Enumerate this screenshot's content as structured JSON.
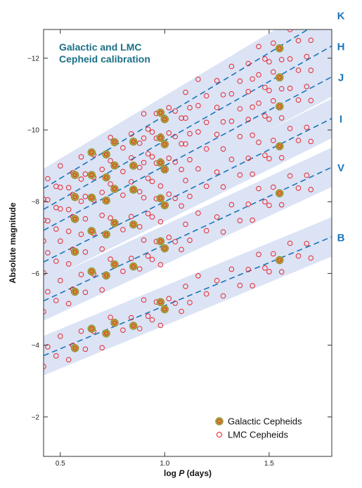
{
  "chart_data": {
    "type": "scatter",
    "title_lines": [
      "Galactic and LMC",
      "Cepheid calibration"
    ],
    "xlabel_prefix": "log ",
    "xlabel_var": "P",
    "xlabel_suffix": " (days)",
    "ylabel": "Absolute magnitude",
    "xlim": [
      0.42,
      1.8
    ],
    "ylim": [
      -12.8,
      -0.9
    ],
    "ylim_note": "axis inverted: brighter (more negative) magnitudes at top",
    "x_ticks": [
      0.5,
      1.0,
      1.5
    ],
    "x_tick_labels": [
      "0.5",
      "1.0",
      "1.5"
    ],
    "y_ticks": [
      -12,
      -10,
      -8,
      -6,
      -4,
      -2
    ],
    "y_tick_labels": [
      "−12",
      "−10",
      "−8",
      "−6",
      "−4",
      "−2"
    ],
    "grid": false,
    "legend_position": "bottom-right",
    "legend": [
      {
        "label": "Galactic Cepheids",
        "marker": "filled-olive-circle"
      },
      {
        "label": "LMC Cepheids",
        "marker": "open-red-circle"
      }
    ],
    "colors": {
      "band": "#dbe3f5",
      "fit_line": "#1b75b8",
      "galactic_fill": "#b7a43a",
      "galactic_ring": "#8a8a2a",
      "lmc": "#e8272d",
      "title": "#1b6f86"
    },
    "bands": [
      {
        "name": "K",
        "a": -3.5,
        "b": -6.9
      },
      {
        "name": "H",
        "a": -3.3,
        "b": -6.4
      },
      {
        "name": "J",
        "a": -3.1,
        "b": -5.9
      },
      {
        "name": "I",
        "a": -2.9,
        "b": -5.1
      },
      {
        "name": "V",
        "a": -2.7,
        "b": -4.1
      },
      {
        "name": "B",
        "a": -2.4,
        "b": -2.7
      }
    ],
    "band_half_width_mag": 0.55,
    "galactic_logP": [
      0.57,
      0.65,
      0.72,
      0.76,
      0.85,
      0.98,
      1.0,
      1.55
    ],
    "lmc_logP": [
      0.42,
      0.44,
      0.48,
      0.5,
      0.54,
      0.56,
      0.6,
      0.62,
      0.66,
      0.7,
      0.74,
      0.8,
      0.84,
      0.88,
      0.9,
      0.92,
      0.94,
      0.96,
      0.98,
      1.02,
      1.05,
      1.08,
      1.1,
      1.12,
      1.16,
      1.2,
      1.25,
      1.28,
      1.32,
      1.36,
      1.4,
      1.42,
      1.45,
      1.48,
      1.5,
      1.52,
      1.56,
      1.6,
      1.64,
      1.68,
      1.7
    ],
    "lmc_offsets": [
      0.3,
      -0.2,
      0.15,
      -0.35,
      0.4,
      0.05,
      -0.25,
      0.3,
      -0.1,
      0.45,
      -0.3,
      0.2,
      -0.05,
      0.35,
      -0.4,
      0.1,
      0.25,
      -0.2,
      0.5,
      -0.15,
      0.05,
      0.35,
      -0.3,
      0.2,
      -0.45,
      0.15,
      -0.1,
      0.4,
      -0.25,
      0.3,
      -0.05,
      0.45,
      -0.35,
      0.1,
      0.25,
      -0.2,
      0.4,
      -0.3,
      0.15,
      -0.1,
      0.35
    ],
    "galactic_offsets": [
      0.15,
      -0.2,
      0.1,
      -0.1,
      0.2,
      -0.15,
      0.1,
      0.05
    ]
  }
}
